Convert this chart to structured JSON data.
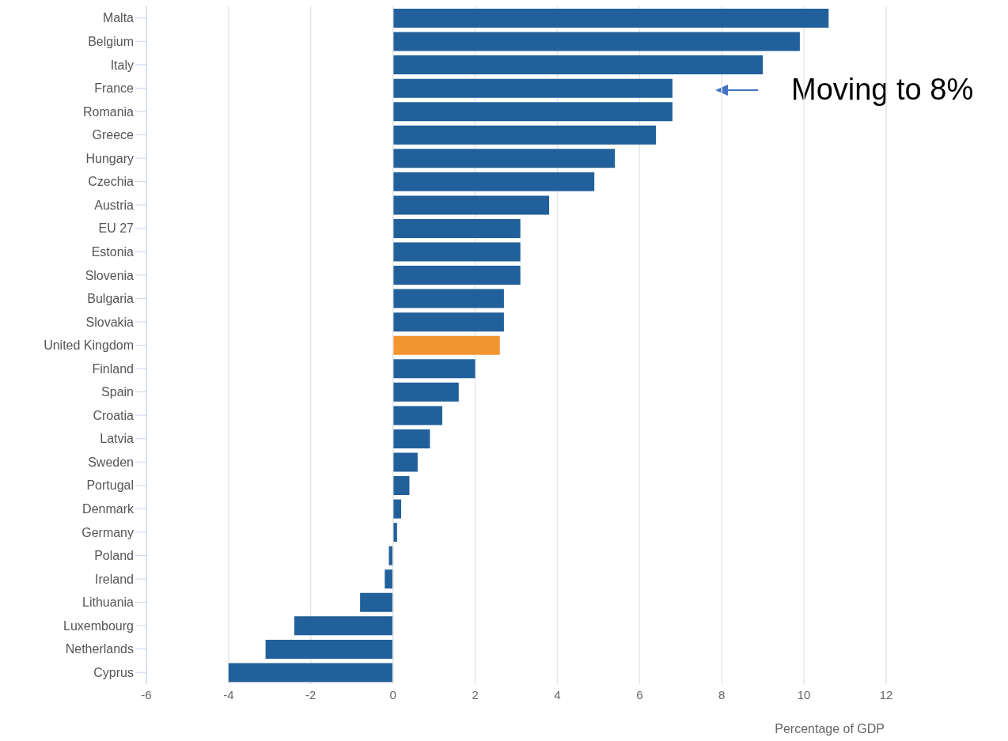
{
  "chart_data": {
    "type": "bar",
    "orientation": "horizontal",
    "xlabel": "Percentage of GDP",
    "categories": [
      "Malta",
      "Belgium",
      "Italy",
      "France",
      "Romania",
      "Greece",
      "Hungary",
      "Czechia",
      "Austria",
      "EU 27",
      "Estonia",
      "Slovenia",
      "Bulgaria",
      "Slovakia",
      "United Kingdom",
      "Finland",
      "Spain",
      "Croatia",
      "Latvia",
      "Sweden",
      "Portugal",
      "Denmark",
      "Germany",
      "Poland",
      "Ireland",
      "Lithuania",
      "Luxembourg",
      "Netherlands",
      "Cyprus"
    ],
    "values": [
      10.6,
      9.9,
      9.0,
      6.8,
      6.8,
      6.4,
      5.4,
      4.9,
      3.8,
      3.1,
      3.1,
      3.1,
      2.7,
      2.7,
      2.6,
      2.0,
      1.6,
      1.2,
      0.9,
      0.6,
      0.4,
      0.2,
      0.1,
      -0.1,
      -0.2,
      -0.8,
      -2.4,
      -3.1,
      -4.0
    ],
    "colors": [
      "#21609a",
      "#21609a",
      "#21609a",
      "#21609a",
      "#21609a",
      "#21609a",
      "#21609a",
      "#21609a",
      "#21609a",
      "#21609a",
      "#21609a",
      "#21609a",
      "#21609a",
      "#21609a",
      "#f39530",
      "#21609a",
      "#21609a",
      "#21609a",
      "#21609a",
      "#21609a",
      "#21609a",
      "#21609a",
      "#21609a",
      "#21609a",
      "#21609a",
      "#21609a",
      "#21609a",
      "#21609a",
      "#21609a"
    ],
    "xlim": [
      -6,
      12
    ],
    "xticks": [
      -6,
      -4,
      -2,
      0,
      2,
      4,
      6,
      8,
      10,
      12
    ],
    "grid": "x",
    "annotations": [
      "Moving to 8%"
    ]
  }
}
